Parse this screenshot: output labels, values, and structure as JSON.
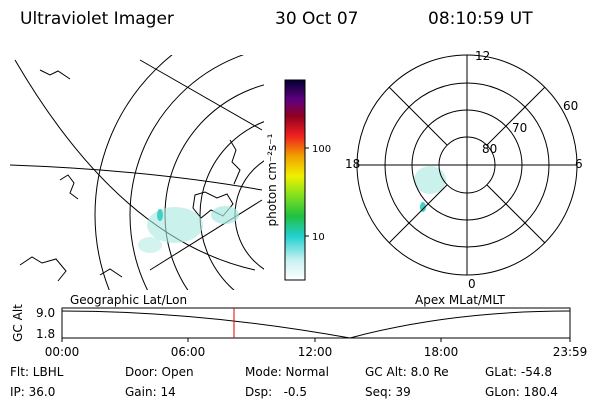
{
  "header": {
    "title": "Ultraviolet Imager",
    "date": "30 Oct 07",
    "time": "08:10:59 UT"
  },
  "colorbar": {
    "label": "photon cm⁻²s⁻¹",
    "ticks": [
      "100",
      "10"
    ]
  },
  "polar": {
    "hours": [
      "12",
      "18",
      "6",
      "0"
    ],
    "latitudes": [
      "60",
      "70",
      "80"
    ]
  },
  "timeline": {
    "left_label": "Geographic Lat/Lon",
    "right_label": "Apex MLat/MLT",
    "y_label": "GC Alt",
    "y_ticks": [
      "9.0",
      "1.8"
    ],
    "x_ticks": [
      "00:00",
      "06:00",
      "12:00",
      "18:00",
      "23:59"
    ]
  },
  "footer": {
    "rows": [
      [
        "Flt: LBHL",
        "Door: Open",
        "Mode: Normal",
        "GC Alt: 8.0 Re",
        "GLat: -54.8"
      ],
      [
        "IP: 36.0",
        "Gain: 14",
        "Dsp:   -0.5",
        "Seq: 39",
        "GLon: 180.4"
      ]
    ]
  }
}
